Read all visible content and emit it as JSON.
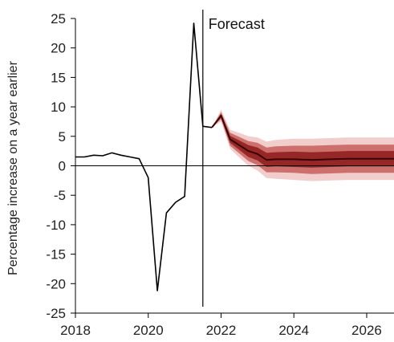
{
  "chart_data": {
    "type": "line",
    "ylabel": "Percentage increase on a year earlier",
    "xlabel": "",
    "ylim": [
      -25,
      25
    ],
    "xlim": [
      2018,
      2026.75
    ],
    "yticks": [
      25,
      20,
      15,
      10,
      5,
      0,
      -5,
      -10,
      -15,
      -20,
      -25
    ],
    "xticks": [
      2018,
      2020,
      2022,
      2024,
      2026
    ],
    "annotation": {
      "label": "Forecast",
      "x": 2021.5
    },
    "colors": {
      "line": "#000000",
      "central": "#3a0000",
      "fan_inner": "#8b1a1a",
      "fan_mid": "#c0504d",
      "fan_outer": "#e6a4a2"
    },
    "series": [
      {
        "type": "history",
        "x": [
          2018.0,
          2018.25,
          2018.5,
          2018.75,
          2019.0,
          2019.25,
          2019.5,
          2019.75,
          2020.0,
          2020.25,
          2020.5,
          2020.75,
          2021.0,
          2021.25,
          2021.5,
          2021.75
        ],
        "values": [
          1.5,
          1.5,
          1.8,
          1.7,
          2.2,
          1.8,
          1.5,
          1.2,
          -2.0,
          -21.2,
          -8.0,
          -6.2,
          -5.2,
          24.2,
          6.7,
          6.5
        ]
      },
      {
        "type": "forecast_central",
        "x": [
          2021.75,
          2022.0,
          2022.25,
          2022.5,
          2022.75,
          2023.0,
          2023.25,
          2023.5,
          2024.0,
          2024.5,
          2025.0,
          2025.5,
          2026.0,
          2026.5,
          2026.75
        ],
        "values": [
          6.5,
          8.5,
          4.5,
          3.5,
          2.5,
          2.0,
          1.0,
          1.1,
          1.1,
          1.0,
          1.1,
          1.2,
          1.2,
          1.2,
          1.2
        ]
      },
      {
        "type": "fan_band",
        "x": [
          2021.75,
          2022.0,
          2022.25,
          2022.5,
          2022.75,
          2023.0,
          2023.25,
          2023.5,
          2024.0,
          2024.5,
          2025.0,
          2025.5,
          2026.0,
          2026.5,
          2026.75
        ],
        "widths": [
          [
            0.0,
            0.3,
            0.6,
            0.8,
            1.0,
            1.1,
            1.2,
            1.2,
            1.3,
            1.3,
            1.3,
            1.3,
            1.3,
            1.3,
            1.3
          ],
          [
            0.0,
            0.6,
            1.1,
            1.4,
            1.7,
            1.9,
            2.1,
            2.2,
            2.3,
            2.4,
            2.4,
            2.4,
            2.4,
            2.4,
            2.4
          ],
          [
            0.0,
            1.0,
            1.6,
            2.1,
            2.5,
            2.8,
            3.1,
            3.3,
            3.5,
            3.6,
            3.6,
            3.6,
            3.6,
            3.6,
            3.6
          ]
        ]
      }
    ]
  }
}
